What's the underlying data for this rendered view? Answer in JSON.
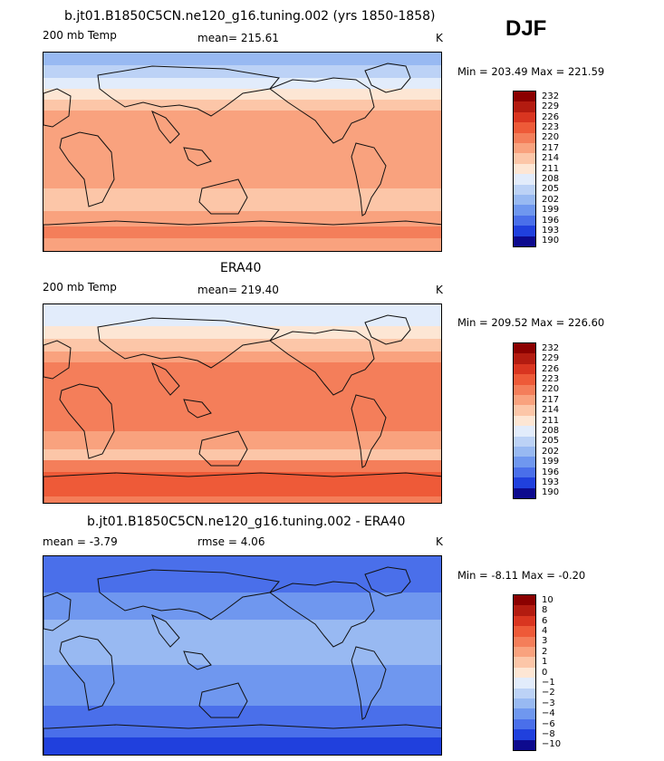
{
  "season": "DJF",
  "panels": [
    {
      "title": "b.jt01.B1850C5CN.ne120_g16.tuning.002 (yrs 1850-1858)",
      "left_label": "200 mb Temp",
      "center_label": "mean= 215.61",
      "units": "K",
      "stats": "Min = 203.49 Max = 221.59",
      "levels": [
        "232",
        "229",
        "226",
        "223",
        "220",
        "217",
        "214",
        "211",
        "208",
        "205",
        "202",
        "199",
        "196",
        "193",
        "190"
      ],
      "palette": [
        "#8b0000",
        "#b31b10",
        "#d93520",
        "#ee5a38",
        "#f47e5a",
        "#f9a27e",
        "#fcc6a8",
        "#fde6d4",
        "#e2ecfb",
        "#bcd2f6",
        "#98b9f2",
        "#6f97ef",
        "#4a6fea",
        "#2040dd",
        "#0d0a8e"
      ],
      "bands": [
        {
          "y_top": 0,
          "color": "#98b9f2"
        },
        {
          "y_top": 14,
          "color": "#bcd2f6"
        },
        {
          "y_top": 28,
          "color": "#e2ecfb"
        },
        {
          "y_top": 40,
          "color": "#fde6d4"
        },
        {
          "y_top": 52,
          "color": "#fcc6a8"
        },
        {
          "y_top": 64,
          "color": "#f9a27e"
        },
        {
          "y_top": 150,
          "color": "#fcc6a8"
        },
        {
          "y_top": 175,
          "color": "#f9a27e"
        },
        {
          "y_top": 192,
          "color": "#f47e5a"
        },
        {
          "y_top": 205,
          "color": "#f9a27e"
        }
      ]
    },
    {
      "title": "ERA40",
      "left_label": "200 mb Temp",
      "center_label": "mean= 219.40",
      "units": "K",
      "stats": "Min = 209.52 Max = 226.60",
      "levels": [
        "232",
        "229",
        "226",
        "223",
        "220",
        "217",
        "214",
        "211",
        "208",
        "205",
        "202",
        "199",
        "196",
        "193",
        "190"
      ],
      "palette": [
        "#8b0000",
        "#b31b10",
        "#d93520",
        "#ee5a38",
        "#f47e5a",
        "#f9a27e",
        "#fcc6a8",
        "#fde6d4",
        "#e2ecfb",
        "#bcd2f6",
        "#98b9f2",
        "#6f97ef",
        "#4a6fea",
        "#2040dd",
        "#0d0a8e"
      ],
      "bands": [
        {
          "y_top": 0,
          "color": "#e2ecfb"
        },
        {
          "y_top": 24,
          "color": "#fde6d4"
        },
        {
          "y_top": 38,
          "color": "#fcc6a8"
        },
        {
          "y_top": 52,
          "color": "#f9a27e"
        },
        {
          "y_top": 64,
          "color": "#f47e5a"
        },
        {
          "y_top": 140,
          "color": "#f9a27e"
        },
        {
          "y_top": 160,
          "color": "#fcc6a8"
        },
        {
          "y_top": 172,
          "color": "#f47e5a"
        },
        {
          "y_top": 185,
          "color": "#ee5a38"
        },
        {
          "y_top": 212,
          "color": "#f47e5a"
        }
      ]
    },
    {
      "title": "b.jt01.B1850C5CN.ne120_g16.tuning.002 - ERA40",
      "left_label": "mean =   -3.79",
      "center_label": "rmse =    4.06",
      "units": "K",
      "stats": "Min =  -8.11 Max =  -0.20",
      "levels": [
        "10",
        "8",
        "6",
        "4",
        "3",
        "2",
        "1",
        "0",
        "−1",
        "−2",
        "−3",
        "−4",
        "−6",
        "−8",
        "−10"
      ],
      "palette": [
        "#8b0000",
        "#b31b10",
        "#d93520",
        "#ee5a38",
        "#f47e5a",
        "#f9a27e",
        "#fcc6a8",
        "#fde6d4",
        "#e2ecfb",
        "#bcd2f6",
        "#98b9f2",
        "#6f97ef",
        "#4a6fea",
        "#2040dd",
        "#0d0a8e"
      ],
      "bands": [
        {
          "y_top": 0,
          "color": "#4a6fea"
        },
        {
          "y_top": 40,
          "color": "#6f97ef"
        },
        {
          "y_top": 70,
          "color": "#98b9f2"
        },
        {
          "y_top": 120,
          "color": "#6f97ef"
        },
        {
          "y_top": 165,
          "color": "#4a6fea"
        },
        {
          "y_top": 200,
          "color": "#2040dd"
        }
      ]
    }
  ]
}
